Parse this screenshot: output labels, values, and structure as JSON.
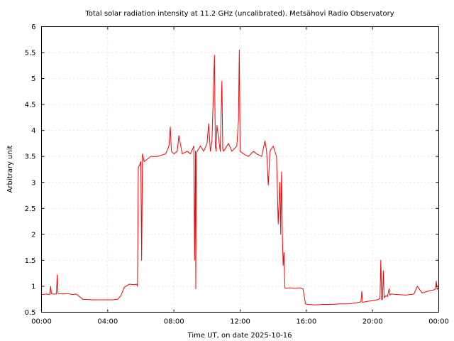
{
  "chart_data": {
    "type": "line",
    "title": "Total solar radiation intensity at 11.2 GHz (uncalibrated). Metsähovi Radio Observatory",
    "xlabel": "Time UT, on date 2025-10-16",
    "ylabel": "Arbitrary unit",
    "xlim": [
      0,
      24
    ],
    "ylim": [
      0.5,
      6
    ],
    "grid": true,
    "x_ticks": [
      0,
      4,
      8,
      12,
      16,
      20,
      24
    ],
    "x_tick_labels": [
      "00:00",
      "04:00",
      "08:00",
      "12:00",
      "16:00",
      "20:00",
      "00:00"
    ],
    "y_ticks": [
      0.5,
      1,
      1.5,
      2,
      2.5,
      3,
      3.5,
      4,
      4.5,
      5,
      5.5,
      6
    ],
    "y_tick_labels": [
      "0.5",
      "1",
      "1.5",
      "2",
      "2.5",
      "3",
      "3.5",
      "4",
      "4.5",
      "5",
      "5.5",
      "6"
    ],
    "series_color": "#ff0000",
    "series": [
      {
        "x": [
          0.0,
          0.3,
          0.5,
          0.55,
          0.6,
          0.7,
          0.9,
          0.95,
          1.0,
          1.3,
          1.6,
          1.85,
          2.1,
          2.5,
          3.0,
          3.5,
          4.0,
          4.3,
          4.6,
          4.8,
          5.0,
          5.3,
          5.6,
          5.75,
          5.8,
          5.85,
          6.0,
          6.05,
          6.1,
          6.2,
          6.4,
          6.6,
          7.0,
          7.5,
          7.7,
          7.78,
          7.85,
          8.0,
          8.2,
          8.3,
          8.5,
          8.8,
          9.0,
          9.2,
          9.25,
          9.3,
          9.32,
          9.35,
          9.4,
          9.6,
          9.8,
          10.0,
          10.1,
          10.2,
          10.3,
          10.45,
          10.5,
          10.55,
          10.6,
          10.8,
          10.9,
          10.95,
          11.0,
          11.3,
          11.5,
          11.8,
          11.9,
          11.95,
          12.0,
          12.2,
          12.5,
          12.8,
          13.0,
          13.3,
          13.5,
          13.6,
          13.7,
          13.8,
          14.0,
          14.2,
          14.3,
          14.4,
          14.45,
          14.5,
          14.55,
          14.6,
          14.65,
          14.7,
          14.8,
          15.0,
          15.3,
          15.6,
          15.8,
          15.95,
          16.1,
          16.5,
          17.0,
          17.5,
          18.0,
          18.5,
          19.0,
          19.3,
          19.35,
          19.4,
          19.7,
          20.0,
          20.3,
          20.45,
          20.5,
          20.55,
          20.6,
          20.65,
          20.7,
          20.8,
          20.9,
          21.0,
          21.05,
          21.1,
          21.5,
          22.0,
          22.5,
          22.7,
          23.0,
          23.3,
          23.5,
          23.7,
          23.8,
          23.85,
          23.9,
          24.0
        ],
        "y": [
          0.84,
          0.85,
          0.84,
          1.0,
          0.86,
          0.85,
          0.85,
          1.22,
          0.86,
          0.85,
          0.86,
          0.84,
          0.85,
          0.75,
          0.74,
          0.74,
          0.74,
          0.74,
          0.75,
          0.82,
          0.98,
          1.04,
          1.03,
          1.04,
          1.0,
          3.28,
          3.4,
          1.5,
          3.55,
          3.4,
          3.45,
          3.5,
          3.5,
          3.55,
          3.7,
          4.07,
          3.6,
          3.55,
          3.6,
          3.9,
          3.55,
          3.6,
          3.55,
          3.7,
          1.5,
          3.6,
          0.95,
          3.55,
          3.6,
          3.7,
          3.6,
          3.75,
          4.13,
          3.6,
          3.8,
          5.45,
          3.7,
          3.6,
          4.1,
          3.6,
          4.95,
          3.65,
          3.6,
          3.75,
          3.6,
          3.7,
          4.2,
          5.55,
          3.6,
          3.55,
          3.5,
          3.6,
          3.55,
          3.5,
          3.8,
          3.6,
          2.95,
          3.6,
          3.7,
          3.5,
          2.2,
          3.0,
          2.0,
          3.2,
          2.0,
          1.4,
          1.65,
          0.97,
          0.96,
          0.97,
          0.96,
          0.97,
          0.95,
          0.66,
          0.65,
          0.64,
          0.65,
          0.65,
          0.66,
          0.66,
          0.68,
          0.7,
          0.9,
          0.69,
          0.71,
          0.72,
          0.74,
          0.76,
          1.5,
          0.74,
          0.75,
          1.3,
          0.78,
          0.82,
          0.8,
          0.95,
          0.83,
          0.85,
          0.84,
          0.83,
          0.85,
          1.0,
          0.87,
          0.9,
          0.92,
          0.93,
          0.95,
          1.1,
          0.94,
          0.98
        ]
      }
    ]
  }
}
